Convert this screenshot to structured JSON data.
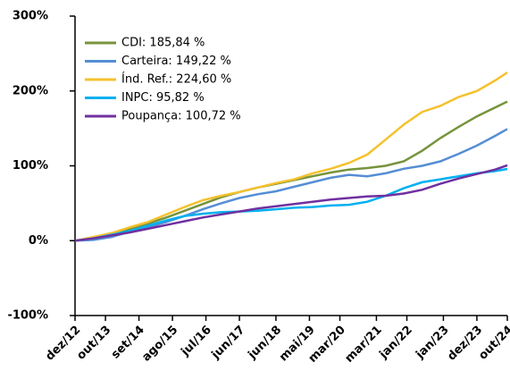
{
  "chart_data": {
    "type": "line",
    "x": [
      0,
      6,
      12,
      18,
      24,
      30,
      36,
      42,
      48,
      54,
      60,
      66,
      72,
      78,
      84,
      90,
      96,
      102,
      108,
      114,
      120,
      126,
      132,
      138,
      142
    ],
    "xlim": [
      0,
      142
    ],
    "xticks": [
      {
        "value": 0,
        "label": "dez/12"
      },
      {
        "value": 10,
        "label": "out/13"
      },
      {
        "value": 21,
        "label": "set/14"
      },
      {
        "value": 32,
        "label": "ago/15"
      },
      {
        "value": 43,
        "label": "jul/16"
      },
      {
        "value": 54,
        "label": "jun/17"
      },
      {
        "value": 66,
        "label": "jun/18"
      },
      {
        "value": 77,
        "label": "mai/19"
      },
      {
        "value": 87,
        "label": "mar/20"
      },
      {
        "value": 99,
        "label": "mar/21"
      },
      {
        "value": 109,
        "label": "jan/22"
      },
      {
        "value": 121,
        "label": "jan/23"
      },
      {
        "value": 132,
        "label": "dez/23"
      },
      {
        "value": 142,
        "label": "out/24"
      }
    ],
    "ylim": [
      -100,
      300
    ],
    "yticks": [
      {
        "value": -100,
        "label": "-100%"
      },
      {
        "value": 0,
        "label": "0%"
      },
      {
        "value": 100,
        "label": "100%"
      },
      {
        "value": 200,
        "label": "200%"
      },
      {
        "value": 300,
        "label": "300%"
      }
    ],
    "legend": "top-left",
    "series": [
      {
        "name": "CDI: 185,84 %",
        "color": "#77933c",
        "values": [
          0,
          4,
          10,
          16,
          23,
          31,
          40,
          49,
          58,
          65,
          71,
          76,
          81,
          86,
          91,
          95,
          97,
          100,
          106,
          120,
          137,
          152,
          166,
          178,
          185.84
        ]
      },
      {
        "name": "Carteira: 149,22 %",
        "color": "#558ed5",
        "values": [
          0,
          1,
          5,
          12,
          18,
          25,
          33,
          42,
          50,
          57,
          62,
          66,
          72,
          78,
          84,
          88,
          86,
          90,
          96,
          100,
          106,
          116,
          127,
          140,
          149.22
        ]
      },
      {
        "name": "Índ. Ref.: 224,60 %",
        "color": "#f5c12e",
        "values": [
          0,
          5,
          10,
          18,
          25,
          35,
          45,
          54,
          60,
          65,
          71,
          77,
          82,
          90,
          96,
          104,
          115,
          135,
          155,
          172,
          180,
          192,
          200,
          214,
          224.6
        ]
      },
      {
        "name": "INPC: 95,82 %",
        "color": "#00b0f0",
        "values": [
          0,
          3,
          8,
          13,
          20,
          27,
          33,
          36,
          38,
          39,
          40,
          42,
          44,
          45,
          47,
          48,
          52,
          60,
          70,
          78,
          82,
          86,
          90,
          93,
          95.82
        ]
      },
      {
        "name": "Poupança: 100,72 %",
        "color": "#7030a0",
        "values": [
          0,
          3,
          7,
          11,
          16,
          21,
          26,
          31,
          35,
          39,
          43,
          46,
          49,
          52,
          55,
          57,
          59,
          60,
          63,
          68,
          76,
          83,
          89,
          95,
          100.72
        ]
      }
    ]
  }
}
